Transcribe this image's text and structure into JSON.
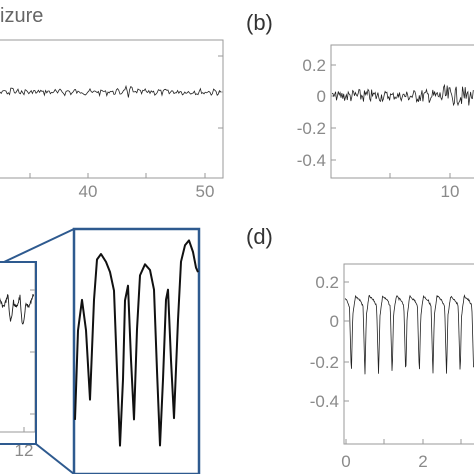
{
  "chart_data": [
    {
      "panel": "a",
      "type": "line",
      "title_fragment": "izure",
      "x_ticks": [
        "40",
        "50"
      ],
      "xlim": [
        27,
        52
      ],
      "y_ticks": [],
      "description_values": {
        "baseline": 0,
        "amplitude": "small noise"
      }
    },
    {
      "panel": "b",
      "label": "(b)",
      "type": "line",
      "x_ticks": [
        "10"
      ],
      "xlim": [
        0,
        14
      ],
      "y_ticks": [
        "0.2",
        "0",
        "-0.2",
        "-0.4"
      ],
      "ylim": [
        -0.48,
        0.3
      ]
    },
    {
      "panel": "c",
      "type": "line",
      "x_ticks": [
        "12"
      ],
      "y_ticks": [],
      "note": "zoomed inset of periodic waveform"
    },
    {
      "panel": "d",
      "label": "(d)",
      "type": "line",
      "x_ticks": [
        "0",
        "2"
      ],
      "xlim": [
        -0.1,
        4
      ],
      "y_ticks": [
        "0.2",
        "0",
        "-0.2",
        "-0.4"
      ],
      "ylim": [
        -0.48,
        0.3
      ]
    }
  ],
  "colors": {
    "frame": "#9a9a9a",
    "trace": "#222222",
    "inset": "#2e5a8f",
    "tick_text": "#8a8a8a"
  }
}
